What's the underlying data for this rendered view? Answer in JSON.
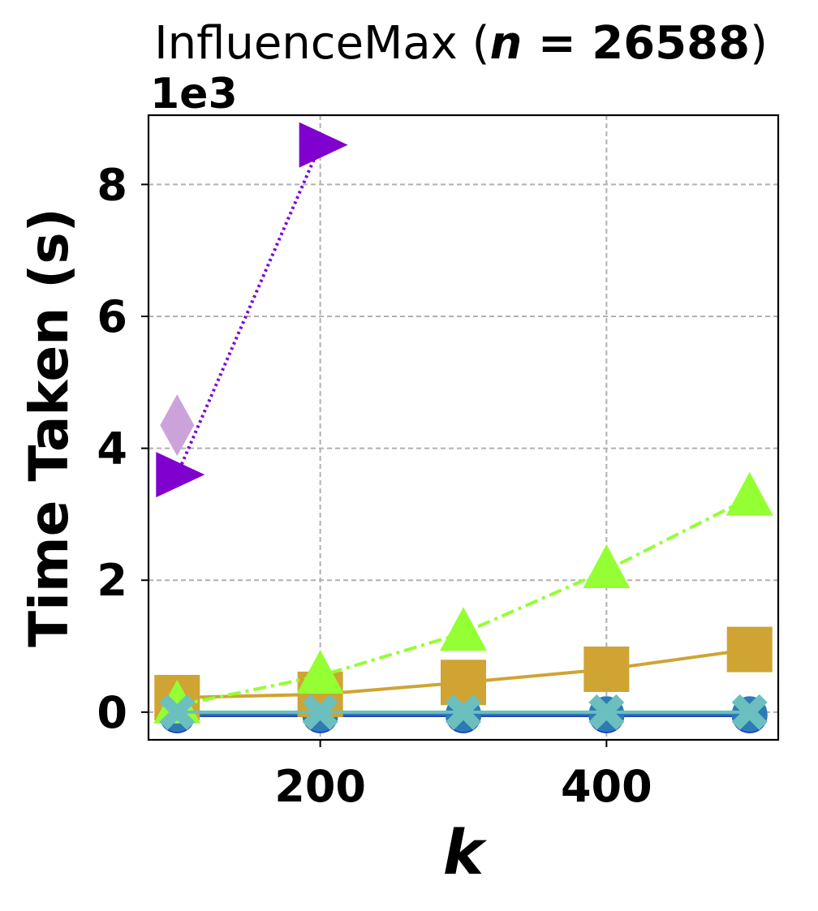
{
  "chart_data": {
    "type": "line",
    "title": "InfluenceMax (",
    "title_math_var": "n",
    "title_math_eq": " = 26588",
    "title_close": ")",
    "xlabel": "k",
    "ylabel": "Time Taken (s)",
    "y_offset_label": "1e3",
    "xlim": [
      80,
      520
    ],
    "ylim": [
      -0.42,
      9.05
    ],
    "y_scale_factor": 1000,
    "xticks": [
      200,
      400
    ],
    "yticks": [
      0,
      2,
      4,
      6,
      8
    ],
    "grid": true,
    "legend": "none",
    "series": [
      {
        "x": [
          100,
          200,
          300,
          400,
          500
        ],
        "y": [
          -0.05,
          -0.05,
          -0.05,
          -0.05,
          -0.05
        ],
        "color": "#1a33b3",
        "marker": "circle",
        "linestyle": "solid"
      },
      {
        "x": [
          100,
          200,
          300,
          400,
          500
        ],
        "y": [
          -0.03,
          -0.03,
          -0.03,
          -0.03,
          -0.03
        ],
        "color": "#2c7bb6",
        "marker": "circle",
        "linestyle": "solid"
      },
      {
        "x": [
          100,
          200,
          300,
          400,
          500
        ],
        "y": [
          0.22,
          0.27,
          0.45,
          0.65,
          0.95
        ],
        "color": "#cfa433",
        "marker": "square",
        "linestyle": "solid"
      },
      {
        "x": [
          100
        ],
        "y": [
          4.35
        ],
        "color": "#cba3da",
        "marker": "diamond",
        "linestyle": "none"
      },
      {
        "x": [
          100,
          200
        ],
        "y": [
          3.6,
          8.6
        ],
        "color": "#7f00cf",
        "marker": "triangle-right",
        "linestyle": "dotted"
      },
      {
        "x": [
          100,
          200,
          300,
          400,
          500
        ],
        "y": [
          0.1,
          0.55,
          1.2,
          2.15,
          3.25
        ],
        "color": "#94ff33",
        "marker": "triangle-up",
        "linestyle": "dashdot"
      },
      {
        "x": [
          100,
          200,
          300,
          400,
          500
        ],
        "y": [
          0.0,
          0.0,
          0.0,
          0.0,
          0.0
        ],
        "color": "#6cbfbf",
        "marker": "x-filled",
        "linestyle": "solid"
      }
    ]
  }
}
